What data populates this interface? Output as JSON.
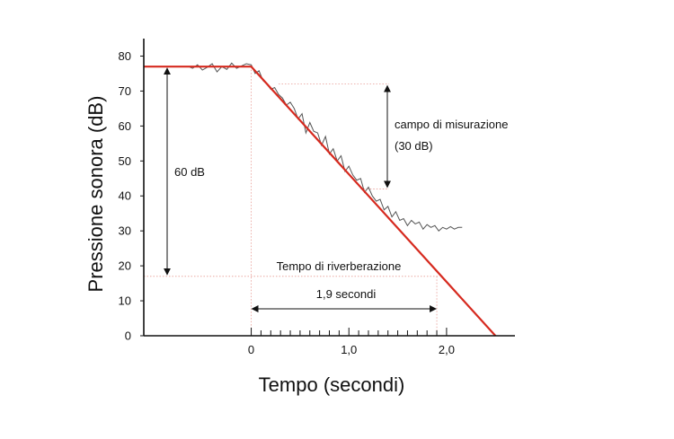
{
  "chart_data": {
    "type": "line",
    "xlabel": "Tempo (secondi)",
    "ylabel": "Pressione sonora (dB)",
    "xlim": [
      -1.1,
      2.7
    ],
    "ylim": [
      0,
      85
    ],
    "y_ticks": [
      0,
      10,
      20,
      30,
      40,
      50,
      60,
      70,
      80
    ],
    "x_ticks": [
      {
        "value": 0,
        "label": "0"
      },
      {
        "value": 1.0,
        "label": "1,0"
      },
      {
        "value": 2.0,
        "label": "2,0"
      }
    ],
    "x_minor_tick_step": 0.1,
    "grid": false,
    "series": [
      {
        "role": "measured-decay",
        "color": "#555555",
        "x": [
          -0.64,
          -0.6,
          -0.55,
          -0.5,
          -0.45,
          -0.4,
          -0.35,
          -0.3,
          -0.25,
          -0.2,
          -0.15,
          -0.1,
          -0.05,
          0.0,
          0.04,
          0.08,
          0.12,
          0.16,
          0.2,
          0.24,
          0.28,
          0.32,
          0.36,
          0.4,
          0.44,
          0.48,
          0.52,
          0.56,
          0.6,
          0.64,
          0.68,
          0.72,
          0.76,
          0.8,
          0.84,
          0.88,
          0.92,
          0.96,
          1.0,
          1.04,
          1.08,
          1.12,
          1.16,
          1.2,
          1.24,
          1.28,
          1.32,
          1.36,
          1.4,
          1.44,
          1.48,
          1.52,
          1.56,
          1.6,
          1.64,
          1.68,
          1.72,
          1.76,
          1.8,
          1.84,
          1.88,
          1.92,
          1.96,
          2.0,
          2.04,
          2.08,
          2.12,
          2.16
        ],
        "y": [
          77,
          76.5,
          77.5,
          76,
          76.8,
          77.8,
          75.5,
          77,
          76.2,
          78,
          76.5,
          77.2,
          77.8,
          77.5,
          75,
          75.8,
          73,
          72,
          70.5,
          71,
          69,
          68,
          66,
          66.8,
          65,
          62,
          63.5,
          58,
          61,
          58.5,
          58,
          54.5,
          57,
          52,
          53.5,
          50,
          51.5,
          47,
          48.5,
          46,
          44.5,
          45,
          41,
          42.5,
          40,
          38.5,
          39,
          36,
          37,
          34,
          35.5,
          33,
          33.5,
          31.5,
          33,
          32,
          32.5,
          30.5,
          31.8,
          31,
          31.5,
          30,
          31,
          30.5,
          31.2,
          30.5,
          31,
          31
        ]
      },
      {
        "role": "regression-line",
        "color": "#d62a1f",
        "x": [
          -1.1,
          0.0,
          2.5
        ],
        "y": [
          77,
          77,
          0
        ]
      }
    ],
    "annotations": {
      "sixty_db": {
        "label": "60 dB",
        "y_from": 77,
        "y_to": 17
      },
      "measuring_range": {
        "label_line1": "campo di misurazione",
        "label_line2": "(30 dB)",
        "y_from": 72,
        "y_to": 42
      },
      "reverb_time": {
        "label": "Tempo di riverberazione",
        "y": 17
      },
      "duration": {
        "label": "1,9 secondi",
        "x_from": 0,
        "x_to": 1.9
      }
    }
  }
}
